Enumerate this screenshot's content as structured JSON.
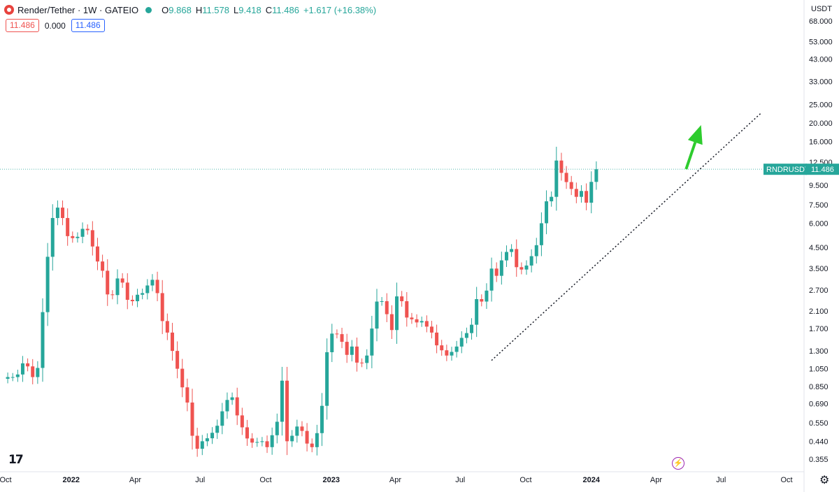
{
  "header": {
    "title": "Render/Tether · 1W · GATEIO",
    "open_label": "O",
    "open": "9.868",
    "high_label": "H",
    "high": "11.578",
    "low_label": "L",
    "low": "9.418",
    "close_label": "C",
    "close": "11.486",
    "change": "+1.617 (+16.38%)"
  },
  "pills": {
    "sell": "11.486",
    "spread": "0.000",
    "buy": "11.486"
  },
  "currency": "USDT",
  "price_tag": {
    "symbol": "RNDRUSDT",
    "price": "11.486"
  },
  "icons": {
    "logo": "tradingview-logo-icon",
    "logo_text": "17",
    "settings": "gear-icon",
    "flash": "lightning-icon"
  },
  "colors": {
    "up": "#26a69a",
    "down": "#ef5350",
    "arrow": "#2ecc2e",
    "trendline": "#131722"
  },
  "chart_data": {
    "type": "candlestick",
    "title": "Render/Tether · 1W · GATEIO",
    "scale": "log",
    "ylim": [
      0.33,
      75
    ],
    "y_ticks": [
      68,
      53,
      43,
      33,
      25,
      20,
      16,
      12.5,
      9.5,
      7.5,
      6,
      4.5,
      3.5,
      2.7,
      2.1,
      1.7,
      1.3,
      1.05,
      0.85,
      0.69,
      0.55,
      0.44,
      0.355
    ],
    "y_tick_labels": [
      "68.000",
      "53.000",
      "43.000",
      "33.000",
      "25.000",
      "20.000",
      "16.000",
      "12.500",
      "9.500",
      "7.500",
      "6.000",
      "4.500",
      "3.500",
      "2.700",
      "2.100",
      "1.700",
      "1.300",
      "1.050",
      "0.850",
      "0.690",
      "0.550",
      "0.440",
      "0.355"
    ],
    "x_labels": [
      "Oct",
      "2022",
      "Apr",
      "Jul",
      "Oct",
      "2023",
      "Apr",
      "Jul",
      "Oct",
      "2024",
      "Apr",
      "Jul",
      "Oct"
    ],
    "x_label_dates": [
      "2021-10-01",
      "2022-01-01",
      "2022-04-01",
      "2022-07-01",
      "2022-10-01",
      "2023-01-01",
      "2023-04-01",
      "2023-07-01",
      "2023-10-01",
      "2024-01-01",
      "2024-04-01",
      "2024-07-01",
      "2024-10-01"
    ],
    "first_candle_date": "2021-10-04",
    "closes": [
      0.95,
      0.95,
      0.98,
      1.12,
      1.08,
      0.95,
      1.06,
      2.07,
      4.02,
      6.4,
      7.25,
      6.4,
      5.15,
      5.03,
      5.11,
      5.62,
      5.53,
      4.55,
      3.8,
      3.4,
      2.56,
      2.54,
      3.1,
      2.95,
      2.4,
      2.36,
      2.55,
      2.6,
      2.85,
      3.05,
      2.6,
      1.86,
      1.62,
      1.3,
      1.05,
      0.84,
      0.7,
      0.47,
      0.402,
      0.44,
      0.456,
      0.487,
      0.53,
      0.63,
      0.722,
      0.745,
      0.6,
      0.52,
      0.455,
      0.433,
      0.436,
      0.44,
      0.41,
      0.473,
      0.556,
      0.91,
      0.44,
      0.47,
      0.525,
      0.498,
      0.428,
      0.41,
      0.485,
      0.673,
      1.28,
      1.6,
      1.59,
      1.45,
      1.24,
      1.37,
      1.13,
      1.125,
      1.23,
      1.7,
      2.35,
      2.36,
      2.02,
      1.67,
      2.5,
      2.36,
      1.94,
      1.9,
      1.83,
      1.86,
      1.74,
      1.62,
      1.39,
      1.31,
      1.23,
      1.285,
      1.37,
      1.52,
      1.61,
      1.78,
      2.42,
      2.35,
      2.68,
      3.49,
      3.2,
      3.85,
      4.26,
      4.41,
      3.55,
      3.45,
      3.62,
      4.05,
      4.62,
      6.01,
      7.82,
      8.25,
      12.75,
      11.0,
      9.85,
      9.07,
      8.25,
      8.85,
      7.69,
      9.87,
      11.486
    ],
    "series": [
      {
        "name": "RNDRUSDT",
        "type": "candlestick",
        "timeframe": "1W",
        "last": 11.486
      }
    ],
    "annotations": {
      "trendline": {
        "from": {
          "date": "2023-08-14",
          "value": 1.16
        },
        "to": {
          "date": "2024-08-26",
          "value": 22.5
        },
        "style": "dotted"
      },
      "arrow": {
        "from": {
          "date": "2024-05-13",
          "value": 11.5
        },
        "to": {
          "date": "2024-06-03",
          "value": 19.5
        },
        "color": "#2ecc2e"
      }
    }
  }
}
